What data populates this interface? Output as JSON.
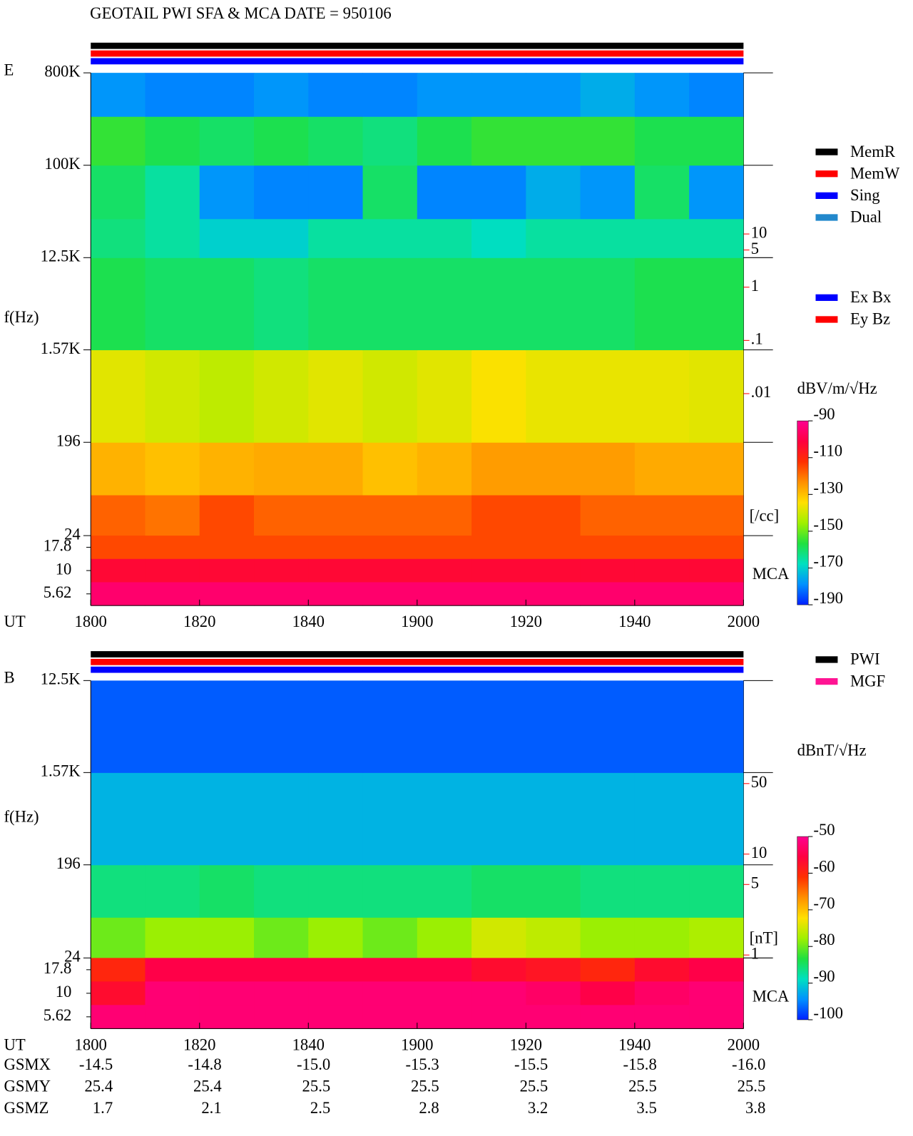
{
  "title": "GEOTAIL  PWI SFA & MCA   DATE = 950106",
  "chart_data": [
    {
      "type": "spectrogram",
      "label": "E",
      "ylabel": "f(Hz)",
      "xlabel": "UT",
      "ylog": true,
      "ylim": [
        24,
        800000
      ],
      "yticks": [
        {
          "value": 800000,
          "label": "800K"
        },
        {
          "value": 100000,
          "label": "100K"
        },
        {
          "value": 12500,
          "label": "12.5K"
        },
        {
          "value": 1570,
          "label": "1.57K"
        },
        196,
        24
      ],
      "xlim": [
        0,
        120
      ],
      "xticks": [
        {
          "value": 0,
          "label": "1800"
        },
        {
          "value": 20,
          "label": "1820"
        },
        {
          "value": 40,
          "label": "1840"
        },
        {
          "value": 60,
          "label": "1900"
        },
        {
          "value": 80,
          "label": "1920"
        },
        {
          "value": 100,
          "label": "1940"
        },
        {
          "value": 120,
          "label": "2000"
        }
      ],
      "rows": [
        {
          "ylim": [
            24,
            60
          ],
          "values": [
            -118,
            -120,
            -115,
            -118,
            -118,
            -118,
            -118,
            -115,
            -115,
            -118,
            -118,
            -118
          ]
        },
        {
          "ylim": [
            60,
            196
          ],
          "values": [
            -128,
            -130,
            -128,
            -127,
            -127,
            -130,
            -128,
            -125,
            -125,
            -125,
            -127,
            -127
          ]
        },
        {
          "ylim": [
            196,
            1570
          ],
          "values": [
            -138,
            -140,
            -142,
            -140,
            -138,
            -140,
            -138,
            -135,
            -137,
            -137,
            -137,
            -138
          ]
        },
        {
          "ylim": [
            1570,
            12500
          ],
          "values": [
            -158,
            -160,
            -160,
            -162,
            -160,
            -160,
            -160,
            -160,
            -160,
            -160,
            -158,
            -158
          ]
        },
        {
          "ylim": [
            12500,
            30000
          ],
          "values": [
            -162,
            -165,
            -170,
            -170,
            -165,
            -165,
            -165,
            -168,
            -165,
            -165,
            -165,
            -165
          ]
        },
        {
          "ylim": [
            30000,
            100000
          ],
          "values": [
            -160,
            -165,
            -178,
            -180,
            -180,
            -160,
            -180,
            -180,
            -175,
            -178,
            -160,
            -178
          ]
        },
        {
          "ylim": [
            100000,
            300000
          ],
          "values": [
            -155,
            -158,
            -160,
            -158,
            -160,
            -162,
            -158,
            -155,
            -155,
            -155,
            -158,
            -158
          ]
        },
        {
          "ylim": [
            300000,
            800000
          ],
          "values": [
            -178,
            -180,
            -180,
            -178,
            -180,
            -180,
            -178,
            -178,
            -178,
            -175,
            -178,
            -180
          ]
        }
      ],
      "mca": {
        "label": "MCA",
        "yticks": [
          17.8,
          10,
          5.62
        ],
        "values": [
          [
            -115,
            -115,
            -115,
            -115,
            -115,
            -115,
            -115,
            -115,
            -115,
            -115,
            -115,
            -115
          ],
          [
            -103,
            -103,
            -103,
            -103,
            -103,
            -103,
            -103,
            -103,
            -103,
            -103,
            -103,
            -103
          ],
          [
            -95,
            -95,
            -95,
            -95,
            -95,
            -95,
            -95,
            -95,
            -95,
            -95,
            -95,
            -95
          ]
        ]
      },
      "y2ylim_note_free": null,
      "y2lim": [
        0.01,
        10
      ],
      "y2ticks": [
        10,
        5,
        1,
        {
          "value": 0.1,
          "label": ".1"
        },
        {
          "value": 0.01,
          "label": ".01"
        }
      ],
      "y2label": "[/cc]",
      "y2color": "#ff0000",
      "legend": [
        {
          "name": "MemR",
          "color": "#000000"
        },
        {
          "name": "MemW",
          "color": "#ff0000"
        },
        {
          "name": "Sing",
          "color": "#0000ff"
        },
        {
          "name": "Dual",
          "color": "#2288cc"
        }
      ],
      "legend2": [
        {
          "name": "Ex Bx",
          "color": "#0000ff"
        },
        {
          "name": "Ey Bz",
          "color": "#ff0000"
        }
      ],
      "colorbar": {
        "label": "dBV/m/√Hz",
        "zlim": [
          -190,
          -90
        ],
        "zticks": [
          -90,
          -110,
          -130,
          -150,
          -170,
          -190
        ]
      },
      "colormap": [
        "#0020ff",
        "#0090ff",
        "#00e0c0",
        "#20e040",
        "#a0f000",
        "#ffe000",
        "#ff9000",
        "#ff3000",
        "#ff0040",
        "#ff0090"
      ]
    },
    {
      "type": "spectrogram",
      "label": "B",
      "ylabel": "f(Hz)",
      "xlabel": "UT",
      "ylog": true,
      "ylim": [
        24,
        12500
      ],
      "yticks": [
        {
          "value": 12500,
          "label": "12.5K"
        },
        {
          "value": 1570,
          "label": "1.57K"
        },
        196,
        24
      ],
      "xlim": [
        0,
        120
      ],
      "xticks": [
        {
          "value": 0,
          "label": "1800"
        },
        {
          "value": 20,
          "label": "1820"
        },
        {
          "value": 40,
          "label": "1840"
        },
        {
          "value": 60,
          "label": "1900"
        },
        {
          "value": 80,
          "label": "1920"
        },
        {
          "value": 100,
          "label": "1940"
        },
        {
          "value": 120,
          "label": "2000"
        }
      ],
      "rows": [
        {
          "ylim": [
            24,
            60
          ],
          "values": [
            -80,
            -78,
            -78,
            -80,
            -78,
            -80,
            -78,
            -75,
            -76,
            -78,
            -78,
            -77
          ]
        },
        {
          "ylim": [
            60,
            196
          ],
          "values": [
            -86,
            -86,
            -85,
            -86,
            -86,
            -86,
            -86,
            -85,
            -85,
            -86,
            -86,
            -86
          ]
        },
        {
          "ylim": [
            196,
            1570
          ],
          "values": [
            -92,
            -92,
            -92,
            -92,
            -92,
            -92,
            -92,
            -92,
            -92,
            -92,
            -92,
            -92
          ]
        },
        {
          "ylim": [
            1570,
            12500
          ],
          "values": [
            -97,
            -97,
            -97,
            -97,
            -97,
            -97,
            -97,
            -97,
            -97,
            -97,
            -97,
            -97
          ]
        }
      ],
      "mca": {
        "label": "MCA",
        "yticks": [
          17.8,
          10,
          5.62
        ],
        "values": [
          [
            -60,
            -55,
            -55,
            -55,
            -55,
            -55,
            -55,
            -57,
            -58,
            -60,
            -57,
            -55
          ],
          [
            -57,
            -52,
            -52,
            -52,
            -52,
            -52,
            -52,
            -52,
            -53,
            -55,
            -53,
            -52
          ],
          [
            -52,
            -52,
            -52,
            -52,
            -52,
            -52,
            -52,
            -52,
            -52,
            -52,
            -52,
            -52
          ]
        ]
      },
      "y2lim": [
        1,
        50
      ],
      "y2ticks": [
        50,
        10,
        5,
        1
      ],
      "y2label": "[nT]",
      "y2color": "#ff0000",
      "legend": [
        {
          "name": "PWI",
          "color": "#000000"
        },
        {
          "name": "MGF",
          "color": "#ff1493"
        }
      ],
      "colorbar": {
        "label": "dBnT/√Hz",
        "zlim": [
          -100,
          -50
        ],
        "zticks": [
          -50,
          -60,
          -70,
          -80,
          -90,
          -100
        ]
      },
      "colormap": [
        "#0020ff",
        "#0090ff",
        "#00e0c0",
        "#20e040",
        "#a0f000",
        "#ffe000",
        "#ff9000",
        "#ff3000",
        "#ff0040",
        "#ff0090"
      ]
    }
  ],
  "orbit": {
    "rows": [
      {
        "label": "GSMX",
        "values": [
          "-14.5",
          "-14.8",
          "-15.0",
          "-15.3",
          "-15.5",
          "-15.8",
          "-16.0"
        ]
      },
      {
        "label": "GSMY",
        "values": [
          "25.4",
          "25.4",
          "25.5",
          "25.5",
          "25.5",
          "25.5",
          "25.5"
        ]
      },
      {
        "label": "GSMZ",
        "values": [
          "1.7",
          "2.1",
          "2.5",
          "2.8",
          "3.2",
          "3.5",
          "3.8"
        ]
      }
    ]
  }
}
